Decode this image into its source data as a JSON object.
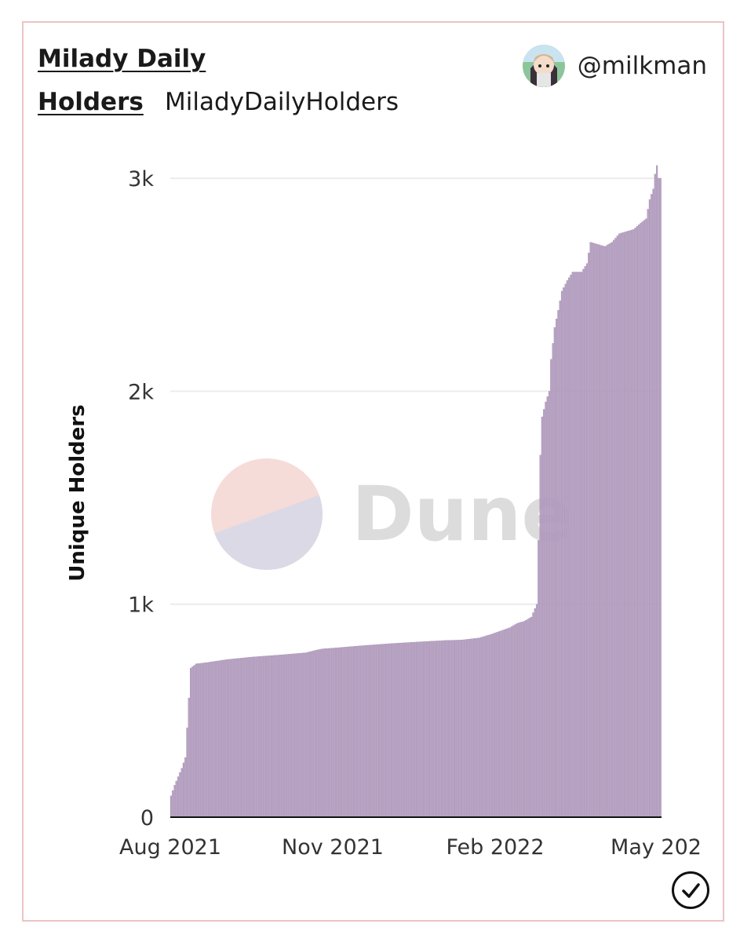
{
  "header": {
    "title_line1": "Milady Daily",
    "title_line2": "Holders",
    "query_name": "MiladyDailyHolders",
    "author": "@milkman"
  },
  "watermark": "Dune",
  "colors": {
    "bar": "#b9a3c4",
    "bar_edge": "#9a84a8",
    "grid": "#ececec",
    "card_border": "#ecc4c4"
  },
  "chart_data": {
    "type": "bar",
    "title": "",
    "xlabel": "",
    "ylabel": "Unique Holders",
    "ylim": [
      0,
      3100
    ],
    "y_ticks": [
      0,
      1000,
      2000,
      3000
    ],
    "y_tick_labels": [
      "0",
      "1k",
      "2k",
      "3k"
    ],
    "x_tick_labels": [
      "Aug 2021",
      "Nov 2021",
      "Feb 2022",
      "May 202"
    ],
    "x_range": [
      "2021-08-01",
      "2022-05-01"
    ],
    "grid": true,
    "series": [
      {
        "name": "",
        "points": [
          [
            "2021-08-01",
            100
          ],
          [
            "2021-08-03",
            150
          ],
          [
            "2021-08-05",
            190
          ],
          [
            "2021-08-07",
            230
          ],
          [
            "2021-08-09",
            280
          ],
          [
            "2021-08-11",
            560
          ],
          [
            "2021-08-12",
            700
          ],
          [
            "2021-08-15",
            720
          ],
          [
            "2021-08-20",
            725
          ],
          [
            "2021-09-01",
            740
          ],
          [
            "2021-09-15",
            752
          ],
          [
            "2021-10-01",
            762
          ],
          [
            "2021-10-15",
            772
          ],
          [
            "2021-10-24",
            790
          ],
          [
            "2021-11-01",
            795
          ],
          [
            "2021-11-15",
            805
          ],
          [
            "2021-12-01",
            815
          ],
          [
            "2021-12-15",
            822
          ],
          [
            "2022-01-01",
            830
          ],
          [
            "2022-01-10",
            832
          ],
          [
            "2022-01-20",
            842
          ],
          [
            "2022-01-27",
            860
          ],
          [
            "2022-02-01",
            875
          ],
          [
            "2022-02-06",
            890
          ],
          [
            "2022-02-10",
            910
          ],
          [
            "2022-02-14",
            920
          ],
          [
            "2022-02-18",
            940
          ],
          [
            "2022-02-21",
            1000
          ],
          [
            "2022-02-22",
            1300
          ],
          [
            "2022-02-23",
            1700
          ],
          [
            "2022-02-24",
            1880
          ],
          [
            "2022-02-26",
            1950
          ],
          [
            "2022-02-28",
            2000
          ],
          [
            "2022-03-01",
            2150
          ],
          [
            "2022-03-03",
            2300
          ],
          [
            "2022-03-05",
            2380
          ],
          [
            "2022-03-07",
            2470
          ],
          [
            "2022-03-10",
            2520
          ],
          [
            "2022-03-13",
            2560
          ],
          [
            "2022-03-18",
            2560
          ],
          [
            "2022-03-21",
            2600
          ],
          [
            "2022-03-23",
            2700
          ],
          [
            "2022-03-27",
            2690
          ],
          [
            "2022-03-31",
            2680
          ],
          [
            "2022-04-04",
            2700
          ],
          [
            "2022-04-08",
            2740
          ],
          [
            "2022-04-12",
            2750
          ],
          [
            "2022-04-16",
            2760
          ],
          [
            "2022-04-20",
            2790
          ],
          [
            "2022-04-23",
            2810
          ],
          [
            "2022-04-25",
            2900
          ],
          [
            "2022-04-27",
            2950
          ],
          [
            "2022-04-28",
            3020
          ],
          [
            "2022-04-29",
            3060
          ],
          [
            "2022-04-30",
            3000
          ],
          [
            "2022-05-01",
            3000
          ]
        ]
      }
    ]
  }
}
